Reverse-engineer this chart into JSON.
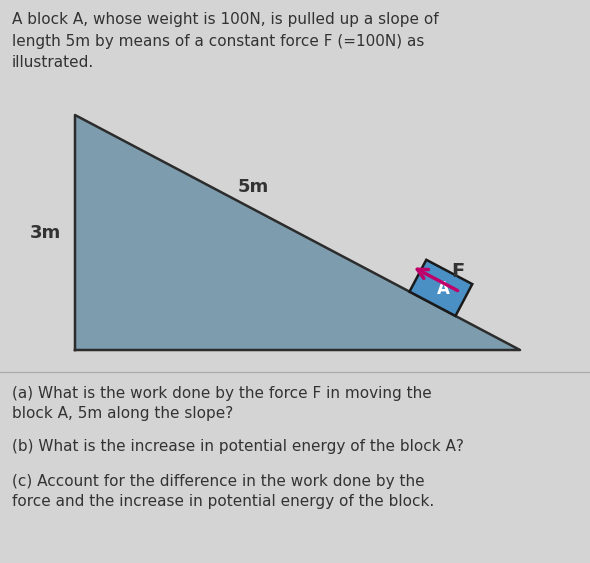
{
  "background_color": "#d4d4d4",
  "triangle_fill": "#7d9dae",
  "triangle_edge": "#2c2c2c",
  "block_fill": "#4a90c4",
  "block_edge": "#1a1a1a",
  "arrow_color": "#c0006a",
  "title_text": "A block A, whose weight is 100N, is pulled up a slope of\nlength 5m by means of a constant force F (=100N) as\nillustrated.",
  "label_3m": "3m",
  "label_5m": "5m",
  "label_F": "F",
  "label_A": "A",
  "question_a": "(a) What is the work done by the force F in moving the\nblock A, 5m along the slope?",
  "question_b": "(b) What is the increase in potential energy of the block A?",
  "question_c": "(c) Account for the difference in the work done by the\nforce and the increase in potential energy of the block.",
  "title_fontsize": 11.0,
  "label_fontsize": 13,
  "question_fontsize": 11.0,
  "text_color": "#333333",
  "figwidth": 5.9,
  "figheight": 5.63,
  "dpi": 100
}
